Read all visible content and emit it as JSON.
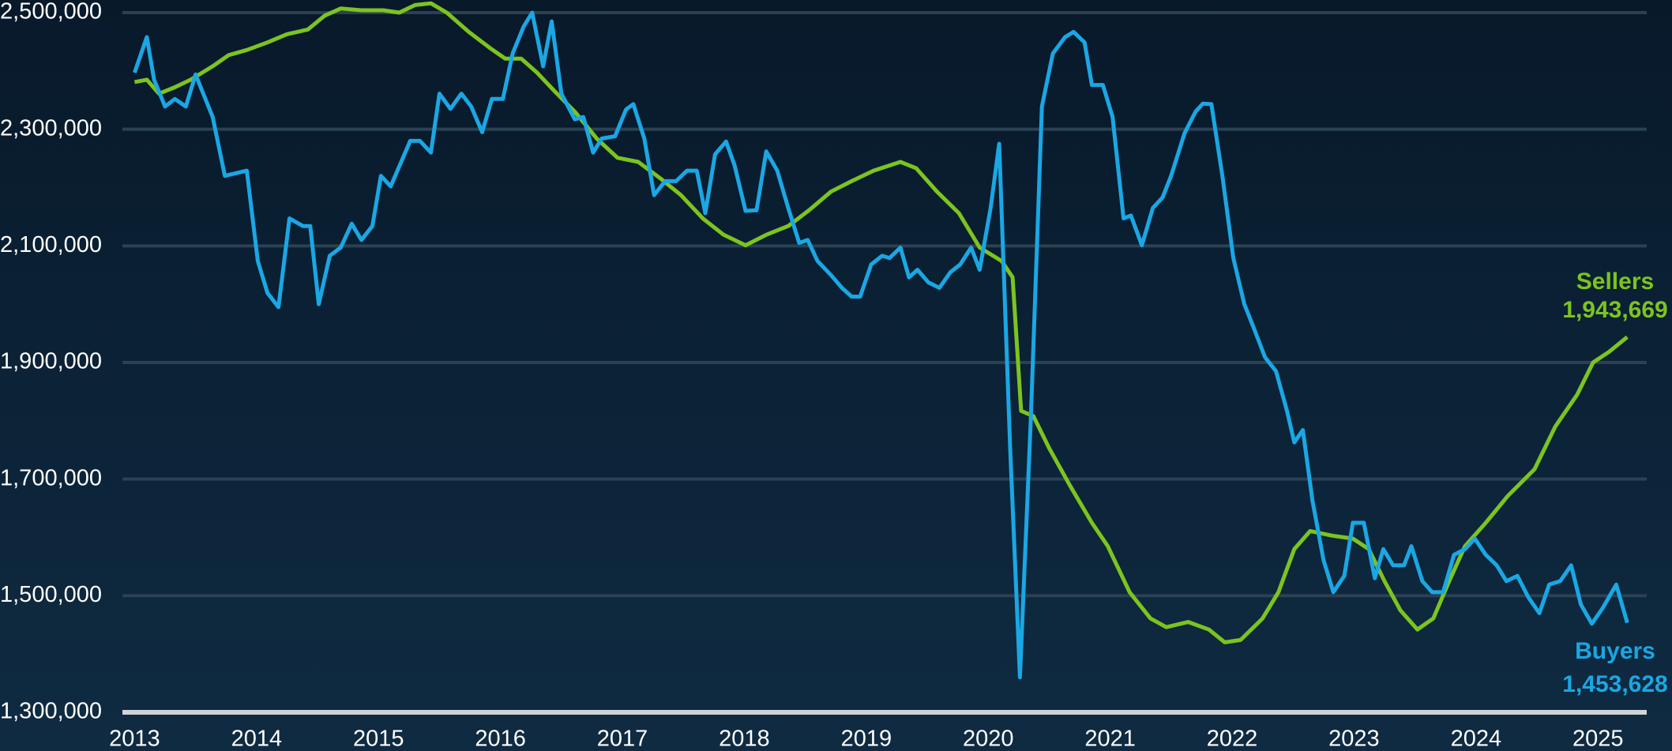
{
  "chart_data": {
    "type": "line",
    "x": [
      2013.0,
      2013.1,
      2013.16,
      2013.25,
      2013.33,
      2013.42,
      2013.5,
      2013.64,
      2013.74,
      2013.92,
      2014.01,
      2014.09,
      2014.18,
      2014.27,
      2014.38,
      2014.44,
      2014.51,
      2014.6,
      2014.69,
      2014.78,
      2014.86,
      2014.95,
      2015.02,
      2015.1,
      2015.26,
      2015.34,
      2015.43,
      2015.5,
      2015.59,
      2015.68,
      2015.76,
      2015.85,
      2015.93,
      2016.02,
      2016.1,
      2016.19,
      2016.26,
      2016.35,
      2016.42,
      2016.5,
      2016.61,
      2016.68,
      2016.76,
      2016.83,
      2016.94,
      2017.03,
      2017.09,
      2017.18,
      2017.26,
      2017.35,
      2017.44,
      2017.53,
      2017.61,
      2017.68,
      2017.76,
      2017.85,
      2017.92,
      2018.01,
      2018.1,
      2018.18,
      2018.27,
      2018.36,
      2018.45,
      2018.52,
      2018.6,
      2018.71,
      2018.8,
      2018.88,
      2018.95,
      2019.04,
      2019.13,
      2019.19,
      2019.28,
      2019.35,
      2019.42,
      2019.51,
      2019.6,
      2019.69,
      2019.77,
      2019.86,
      2019.93,
      2020.02,
      2020.09,
      2020.18,
      2020.26,
      2020.35,
      2020.44,
      2020.53,
      2020.63,
      2020.7,
      2020.79,
      2020.85,
      2020.94,
      2021.02,
      2021.11,
      2021.17,
      2021.26,
      2021.35,
      2021.43,
      2021.5,
      2021.61,
      2021.7,
      2021.76,
      2021.83,
      2021.92,
      2022.01,
      2022.1,
      2022.18,
      2022.27,
      2022.36,
      2022.45,
      2022.51,
      2022.58,
      2022.66,
      2022.75,
      2022.83,
      2022.92,
      2022.99,
      2023.08,
      2023.17,
      2023.24,
      2023.32,
      2023.41,
      2023.47,
      2023.56,
      2023.64,
      2023.73,
      2023.82,
      2023.91,
      2023.99,
      2024.08,
      2024.17,
      2024.25,
      2024.34,
      2024.43,
      2024.52,
      2024.6,
      2024.69,
      2024.78,
      2024.86,
      2024.95,
      2025.04,
      2025.15,
      2025.24
    ],
    "xlim": [
      2012.9,
      2025.4
    ],
    "xticks": [
      2013,
      2014,
      2015,
      2016,
      2017,
      2018,
      2019,
      2020,
      2021,
      2022,
      2023,
      2024,
      2025
    ],
    "ylim": [
      1300000,
      2500000
    ],
    "yticks": [
      {
        "value": 1300000,
        "label": "1,300,000"
      },
      {
        "value": 1500000,
        "label": "1,500,000"
      },
      {
        "value": 1700000,
        "label": "1,700,000"
      },
      {
        "value": 1900000,
        "label": "1,900,000"
      },
      {
        "value": 2100000,
        "label": "2,100,000"
      },
      {
        "value": 2300000,
        "label": "2,300,000"
      },
      {
        "value": 2500000,
        "label": "2,500,000"
      }
    ],
    "grid": true,
    "series": [
      {
        "name": "Sellers",
        "color": "#7cc41f",
        "last_label": "1,943,669",
        "x": [
          2013.0,
          2013.1,
          2013.2,
          2013.33,
          2013.46,
          2013.64,
          2013.77,
          2013.92,
          2014.09,
          2014.25,
          2014.42,
          2014.56,
          2014.69,
          2014.86,
          2015.04,
          2015.17,
          2015.3,
          2015.43,
          2015.56,
          2015.74,
          2015.91,
          2016.04,
          2016.17,
          2016.3,
          2016.44,
          2016.61,
          2016.79,
          2016.96,
          2017.13,
          2017.31,
          2017.48,
          2017.66,
          2017.83,
          2018.01,
          2018.18,
          2018.36,
          2018.53,
          2018.71,
          2018.88,
          2019.06,
          2019.28,
          2019.41,
          2019.58,
          2019.76,
          2019.93,
          2020.11,
          2020.2,
          2020.27,
          2020.37,
          2020.5,
          2020.67,
          2020.85,
          2020.98,
          2021.16,
          2021.33,
          2021.46,
          2021.64,
          2021.81,
          2021.94,
          2022.07,
          2022.25,
          2022.38,
          2022.51,
          2022.64,
          2022.82,
          2022.99,
          2023.12,
          2023.25,
          2023.38,
          2023.52,
          2023.65,
          2023.78,
          2023.91,
          2024.08,
          2024.26,
          2024.48,
          2024.65,
          2024.83,
          2024.96,
          2025.09,
          2025.24
        ],
        "values": [
          2381000,
          2385000,
          2361000,
          2372000,
          2385000,
          2408000,
          2427000,
          2436000,
          2449000,
          2463000,
          2471000,
          2495000,
          2507000,
          2504000,
          2504000,
          2500000,
          2513000,
          2516000,
          2500000,
          2467000,
          2440000,
          2421000,
          2421000,
          2397000,
          2366000,
          2330000,
          2284000,
          2251000,
          2244000,
          2216000,
          2187000,
          2147000,
          2119000,
          2101000,
          2119000,
          2134000,
          2161000,
          2193000,
          2211000,
          2229000,
          2244000,
          2233000,
          2193000,
          2156000,
          2097000,
          2074000,
          2046000,
          1817000,
          1808000,
          1753000,
          1689000,
          1625000,
          1585000,
          1506000,
          1461000,
          1446000,
          1455000,
          1442000,
          1420000,
          1424000,
          1461000,
          1506000,
          1580000,
          1611000,
          1603000,
          1598000,
          1580000,
          1525000,
          1475000,
          1442000,
          1461000,
          1525000,
          1585000,
          1625000,
          1671000,
          1717000,
          1790000,
          1845000,
          1900000,
          1918000,
          1943669
        ]
      },
      {
        "name": "Buyers",
        "color": "#1aa7e4",
        "last_label": "1,453,628",
        "values": [
          2397000,
          2458000,
          2385000,
          2339000,
          2352000,
          2339000,
          2394000,
          2321000,
          2220000,
          2229000,
          2074000,
          2019000,
          1995000,
          2147000,
          2134000,
          2134000,
          2000000,
          2083000,
          2097000,
          2138000,
          2110000,
          2134000,
          2220000,
          2202000,
          2280000,
          2280000,
          2260000,
          2361000,
          2335000,
          2361000,
          2339000,
          2295000,
          2352000,
          2352000,
          2430000,
          2476000,
          2500000,
          2408000,
          2485000,
          2361000,
          2317000,
          2321000,
          2260000,
          2284000,
          2288000,
          2334000,
          2343000,
          2284000,
          2187000,
          2211000,
          2211000,
          2229000,
          2229000,
          2156000,
          2257000,
          2279000,
          2238000,
          2160000,
          2161000,
          2262000,
          2229000,
          2165000,
          2105000,
          2110000,
          2074000,
          2050000,
          2028000,
          2013000,
          2013000,
          2068000,
          2083000,
          2079000,
          2097000,
          2046000,
          2059000,
          2037000,
          2028000,
          2055000,
          2068000,
          2097000,
          2059000,
          2165000,
          2275000,
          1753000,
          1360000,
          1808000,
          2339000,
          2430000,
          2458000,
          2467000,
          2449000,
          2376000,
          2376000,
          2321000,
          2147000,
          2152000,
          2101000,
          2165000,
          2183000,
          2220000,
          2293000,
          2330000,
          2344000,
          2343000,
          2220000,
          2079000,
          2000000,
          1958000,
          1909000,
          1885000,
          1817000,
          1763000,
          1784000,
          1662000,
          1561000,
          1506000,
          1534000,
          1625000,
          1625000,
          1530000,
          1580000,
          1552000,
          1552000,
          1585000,
          1525000,
          1506000,
          1506000,
          1570000,
          1580000,
          1598000,
          1570000,
          1552000,
          1525000,
          1534000,
          1497000,
          1470000,
          1519000,
          1525000,
          1552000,
          1485000,
          1452000,
          1479000,
          1519000,
          1453628
        ]
      }
    ]
  }
}
